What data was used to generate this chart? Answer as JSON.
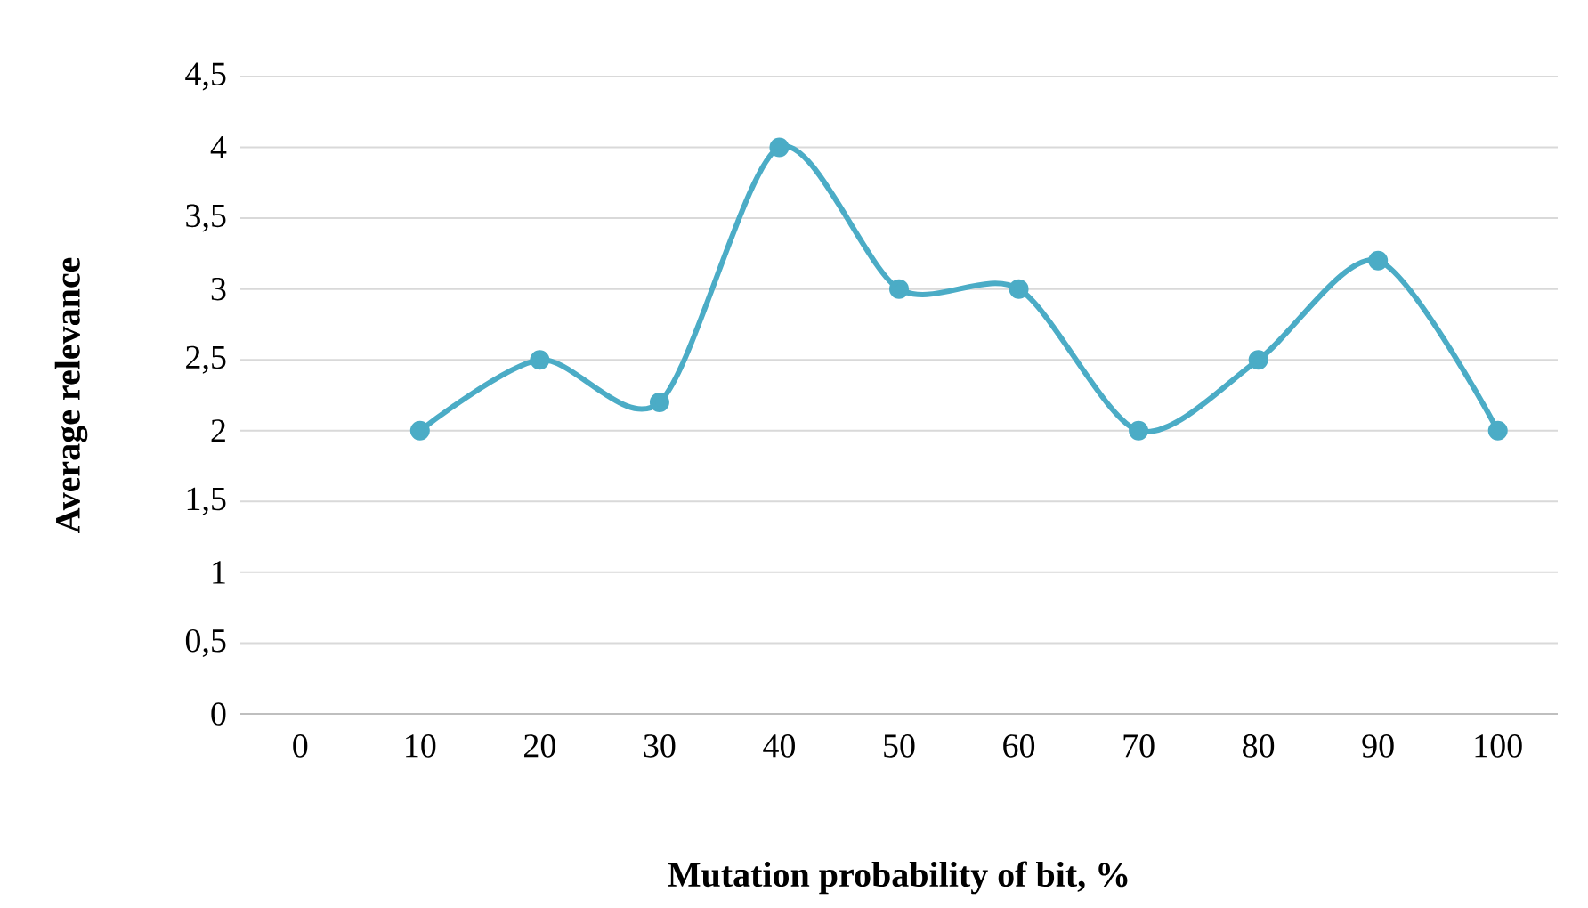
{
  "chart_data": {
    "type": "line",
    "xlabel": "Mutation probability of bit, %",
    "ylabel": "Average relevance",
    "categories": [
      "0",
      "10",
      "20",
      "30",
      "40",
      "50",
      "60",
      "70",
      "80",
      "90",
      "100"
    ],
    "series": [
      {
        "color": "#4bacc6",
        "values": [
          null,
          2,
          2.5,
          2.2,
          4,
          3,
          3,
          2,
          2.5,
          3.2,
          2
        ]
      }
    ],
    "ylim": [
      0,
      4.5
    ],
    "yticks": [
      0,
      {
        "value": 0.5,
        "label": "0,5"
      },
      1,
      {
        "value": 1.5,
        "label": "1,5"
      },
      2,
      {
        "value": 2.5,
        "label": "2,5"
      },
      3,
      {
        "value": 3.5,
        "label": "3,5"
      },
      4,
      {
        "value": 4.5,
        "label": "4,5"
      }
    ],
    "grid": "y",
    "marker": "circle",
    "line_style": "solid"
  }
}
